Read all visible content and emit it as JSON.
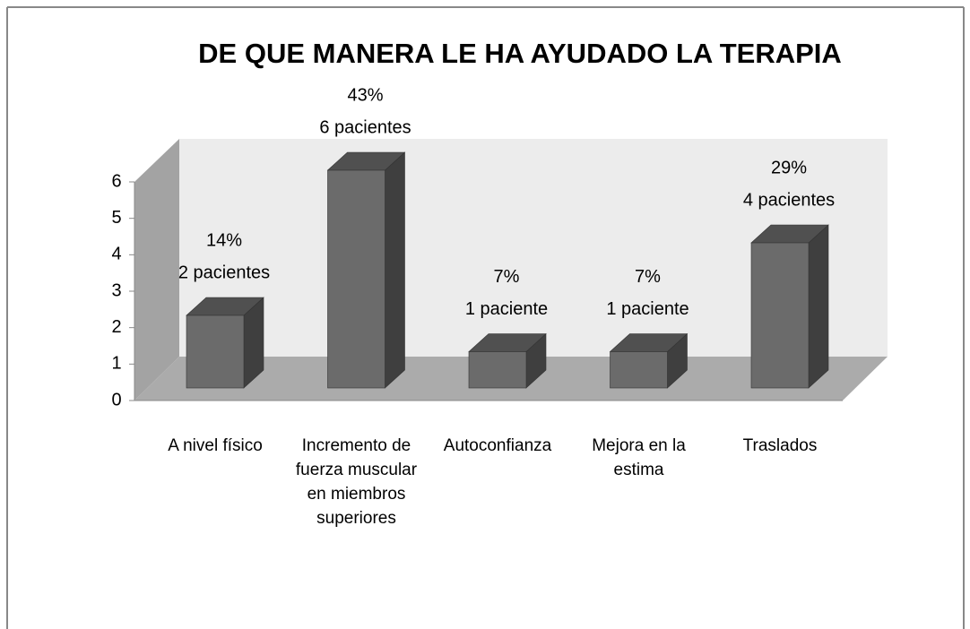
{
  "chart_data": {
    "type": "bar3d",
    "title": "DE QUE MANERA LE HA AYUDADO LA TERAPIA",
    "categories": [
      "A nivel físico",
      "Incremento de fuerza muscular en miembros superiores",
      "Autoconfianza",
      "Mejora en la estima",
      "Traslados"
    ],
    "values": [
      2,
      6,
      1,
      1,
      4
    ],
    "value_labels": [
      "2 pacientes",
      "6 pacientes",
      "1 paciente",
      "1 paciente",
      "4 pacientes"
    ],
    "percent_labels": [
      "14%",
      "43%",
      "7%",
      "7%",
      "29%"
    ],
    "color": "#6b6b6b",
    "ylim": [
      0,
      6
    ],
    "yticks": [
      0,
      1,
      2,
      3,
      4,
      5,
      6
    ]
  }
}
